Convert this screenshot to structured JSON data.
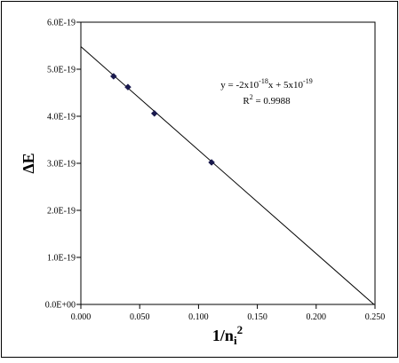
{
  "chart_data": {
    "type": "scatter",
    "title": "",
    "xlabel": {
      "main": "1/n",
      "sub": "i",
      "sup": "2"
    },
    "ylabel": "ΔE",
    "xlim": [
      0.0,
      0.25
    ],
    "ylim": [
      0.0,
      6e-19
    ],
    "x_ticks": [
      0.0,
      0.05,
      0.1,
      0.15,
      0.2,
      0.25
    ],
    "x_tick_labels": [
      "0.000",
      "0.050",
      "0.100",
      "0.150",
      "0.200",
      "0.250"
    ],
    "y_ticks": [
      0.0,
      1e-19,
      2e-19,
      3e-19,
      4e-19,
      5e-19,
      6e-19
    ],
    "y_tick_labels": [
      "0.0E+00",
      "1.0E-19",
      "2.0E-19",
      "3.0E-19",
      "4.0E-19",
      "5.0E-19",
      "6.0E-19"
    ],
    "grid": false,
    "legend": "none",
    "series": [
      {
        "marker": "diamond",
        "color": "#1a1a4e",
        "points": [
          {
            "x": 0.0278,
            "y": 4.85e-19
          },
          {
            "x": 0.04,
            "y": 4.62e-19
          },
          {
            "x": 0.0625,
            "y": 4.06e-19
          },
          {
            "x": 0.1111,
            "y": 3.02e-19
          }
        ]
      }
    ],
    "trendline": {
      "type": "linear",
      "slope": -2.2e-18,
      "intercept": 5.48e-19,
      "color": "#000000"
    },
    "annotation": {
      "equation": {
        "prefix": "y = -2x10",
        "exp1": "-18",
        "mid": "x + 5x10",
        "exp2": "-19"
      },
      "r2": {
        "label": "R",
        "exp": "2",
        "value": " = 0.9988"
      }
    }
  }
}
